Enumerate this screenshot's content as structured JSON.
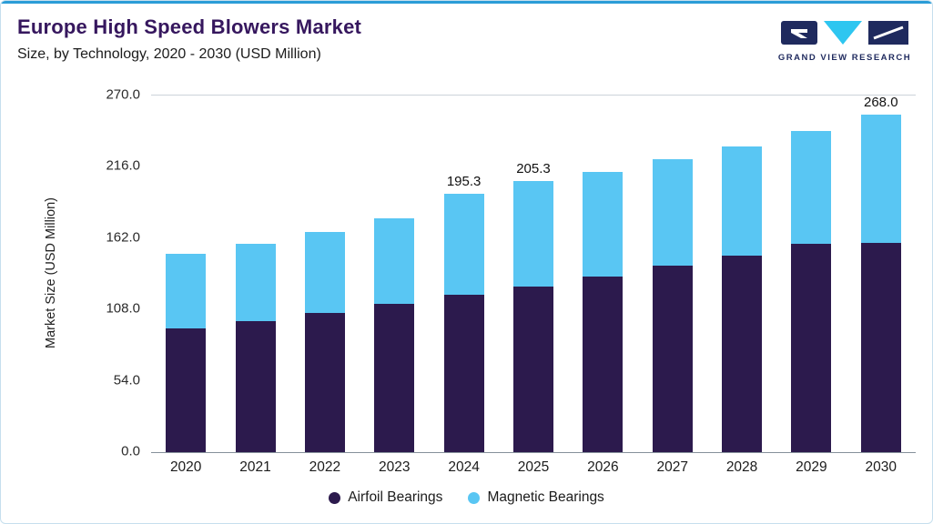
{
  "header": {
    "title": "Europe High Speed Blowers Market",
    "subtitle": "Size, by Technology, 2020 - 2030 (USD Million)",
    "logo_text": "GRAND VIEW RESEARCH"
  },
  "colors": {
    "accent_top_bar": "#2a9cd7",
    "card_border": "#c6dfee",
    "title_purple": "#36175e",
    "logo_navy": "#1f2a5e",
    "logo_cyan": "#2ec6f0"
  },
  "chart_data": {
    "type": "bar",
    "stacked": true,
    "title": "Europe High Speed Blowers Market Size, by Technology, 2020 - 2030 (USD Million)",
    "categories": [
      "2020",
      "2021",
      "2022",
      "2023",
      "2024",
      "2025",
      "2026",
      "2027",
      "2028",
      "2029",
      "2030"
    ],
    "series": [
      {
        "name": "Airfoil Bearings",
        "color": "#2c1a4d",
        "values": [
          93.5,
          99.0,
          105.5,
          112.5,
          119.0,
          125.5,
          133.0,
          141.0,
          149.0,
          157.5,
          166.5
        ]
      },
      {
        "name": "Magnetic Bearings",
        "color": "#59c6f3",
        "values": [
          56.5,
          58.5,
          61.5,
          64.5,
          76.3,
          79.8,
          79.0,
          80.5,
          82.5,
          86.0,
          101.5
        ]
      }
    ],
    "totals": [
      150.0,
      157.5,
      167.0,
      177.0,
      195.3,
      205.3,
      212.0,
      221.5,
      231.5,
      243.5,
      268.0
    ],
    "value_labels": [
      "",
      "",
      "",
      "",
      "195.3",
      "205.3",
      "",
      "",
      "",
      "",
      "268.0"
    ],
    "xlabel": "",
    "ylabel": "Market Size (USD Million)",
    "ylim": [
      0,
      270
    ],
    "ytick_labels": [
      "0.0",
      "54.0",
      "108.0",
      "162.0",
      "216.0",
      "270.0"
    ],
    "gridlines": "top-line-only",
    "legend_position": "bottom"
  }
}
